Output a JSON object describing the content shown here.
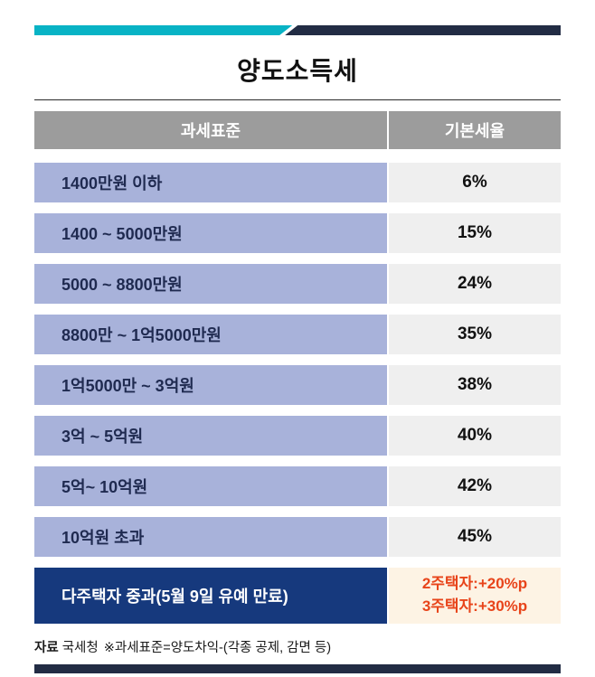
{
  "title": "양도소득세",
  "table": {
    "headers": [
      "과세표준",
      "기본세율"
    ],
    "rows": [
      {
        "label": "1400만원 이하",
        "rate": "6%"
      },
      {
        "label": "1400 ~ 5000만원",
        "rate": "15%"
      },
      {
        "label": "5000 ~ 8800만원",
        "rate": "24%"
      },
      {
        "label": "8800만 ~ 1억5000만원",
        "rate": "35%"
      },
      {
        "label": "1억5000만 ~ 3억원",
        "rate": "38%"
      },
      {
        "label": "3억 ~ 5억원",
        "rate": "40%"
      },
      {
        "label": "5억~ 10억원",
        "rate": "42%"
      },
      {
        "label": "10억원 초과",
        "rate": "45%"
      }
    ],
    "highlight_row": {
      "label": "다주택자 중과(5월 9일 유예 만료)",
      "rates": [
        "2주택자:+20%p",
        "3주택자:+30%p"
      ]
    }
  },
  "footer": {
    "source_label": "자료",
    "source_text": "국세청",
    "note": "※과세표준=양도차익-(각종 공제, 감면 등)"
  },
  "colors": {
    "teal": "#08b3c5",
    "bar_navy": "#222c44",
    "header_gray": "#9c9c9c",
    "row_purple": "#a8b2da",
    "label_navy": "#1f2a50",
    "row_gray": "#efefef",
    "highlight_navy": "#16397d",
    "cream": "#fdf3e4",
    "red": "#e8441a"
  },
  "chart_data": {
    "type": "table",
    "title": "양도소득세",
    "columns": [
      "과세표준",
      "기본세율"
    ],
    "rows": [
      [
        "1400만원 이하",
        "6%"
      ],
      [
        "1400 ~ 5000만원",
        "15%"
      ],
      [
        "5000 ~ 8800만원",
        "24%"
      ],
      [
        "8800만 ~ 1억5000만원",
        "35%"
      ],
      [
        "1억5000만 ~ 3억원",
        "38%"
      ],
      [
        "3억 ~ 5억원",
        "40%"
      ],
      [
        "5억~ 10억원",
        "42%"
      ],
      [
        "10억원 초과",
        "45%"
      ],
      [
        "다주택자 중과(5월 9일 유예 만료)",
        "2주택자:+20%p / 3주택자:+30%p"
      ]
    ],
    "source": "자료 국세청 ※과세표준=양도차익-(각종 공제, 감면 등)"
  }
}
